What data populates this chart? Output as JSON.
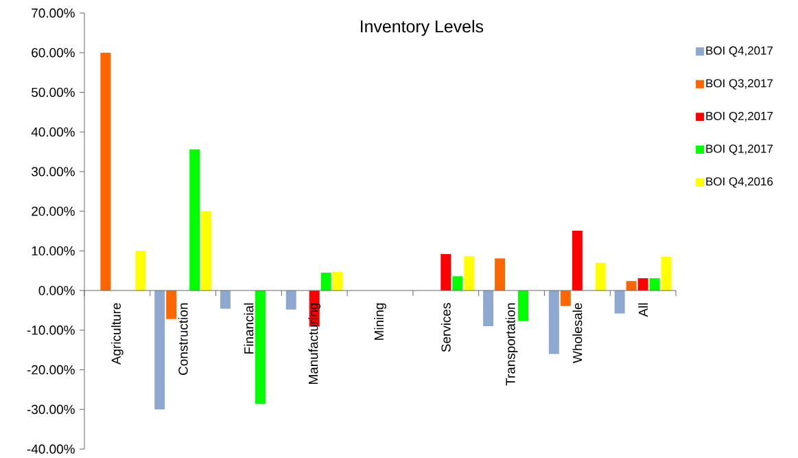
{
  "chart_data": {
    "type": "bar",
    "title": "Inventory Levels",
    "categories": [
      "Agriculture",
      "Construction",
      "Financial",
      "Manufacturing",
      "Mining",
      "Services",
      "Transportation",
      "Wholesale",
      "All"
    ],
    "series": [
      {
        "name": "BOI Q4,2017",
        "color": "#8fa8d0",
        "values": [
          null,
          -30.0,
          -4.6,
          -4.8,
          null,
          null,
          -9.0,
          -16.0,
          -5.8
        ]
      },
      {
        "name": "BOI Q3,2017",
        "color": "#ff6600",
        "values": [
          60.0,
          -7.2,
          null,
          null,
          null,
          null,
          8.1,
          -3.9,
          2.4
        ]
      },
      {
        "name": "BOI Q2,2017",
        "color": "#ff0000",
        "values": [
          null,
          null,
          null,
          -9.1,
          null,
          9.2,
          null,
          15.1,
          3.1
        ]
      },
      {
        "name": "BOI Q1,2017",
        "color": "#00ff00",
        "values": [
          null,
          35.6,
          -28.6,
          4.5,
          null,
          3.6,
          -7.7,
          null,
          3.1
        ]
      },
      {
        "name": "BOI Q4,2016",
        "color": "#ffff00",
        "values": [
          10.0,
          20.0,
          null,
          4.7,
          null,
          8.7,
          null,
          7.0,
          8.5
        ]
      }
    ],
    "ylim": [
      -40,
      70
    ],
    "yticks": [
      {
        "value": -40,
        "label": "-40.00%"
      },
      {
        "value": -30,
        "label": "-30.00%"
      },
      {
        "value": -20,
        "label": "-20.00%"
      },
      {
        "value": -10,
        "label": "-10.00%"
      },
      {
        "value": 0,
        "label": "0.00%"
      },
      {
        "value": 10,
        "label": "10.00%"
      },
      {
        "value": 20,
        "label": "20.00%"
      },
      {
        "value": 30,
        "label": "30.00%"
      },
      {
        "value": 40,
        "label": "40.00%"
      },
      {
        "value": 50,
        "label": "50.00%"
      },
      {
        "value": 60,
        "label": "60.00%"
      },
      {
        "value": 70,
        "label": "70.00%"
      }
    ],
    "grid": false,
    "legend": "right"
  }
}
